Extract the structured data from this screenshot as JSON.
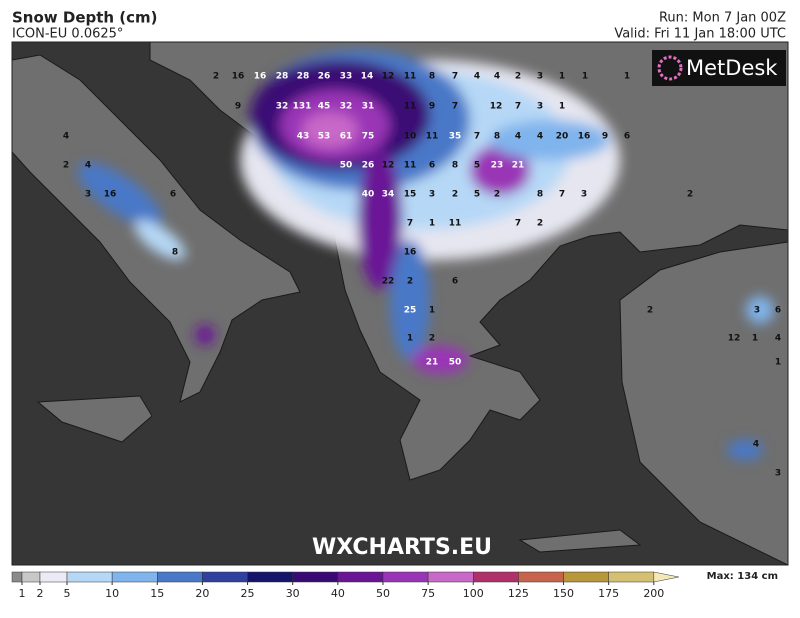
{
  "header": {
    "title": "Snow Depth (cm)",
    "subtitle": "ICON-EU 0.0625°",
    "run": "Run: Mon 7 Jan 00Z",
    "valid": "Valid: Fri 11 Jan 18:00 UTC"
  },
  "logo": "MetDesk",
  "watermark": "WXCHARTS.EU",
  "map": {
    "labels": [
      "2",
      "16",
      "16",
      "28",
      "28",
      "26",
      "33",
      "14",
      "12",
      "11",
      "8",
      "7",
      "4",
      "4",
      "2",
      "3",
      "1",
      "1",
      "1",
      "9",
      "32",
      "131",
      "45",
      "32",
      "31",
      "11",
      "9",
      "7",
      "12",
      "7",
      "3",
      "1",
      "4",
      "43",
      "53",
      "61",
      "75",
      "10",
      "11",
      "35",
      "7",
      "8",
      "4",
      "4",
      "20",
      "16",
      "9",
      "6",
      "2",
      "4",
      "50",
      "26",
      "12",
      "11",
      "6",
      "8",
      "5",
      "23",
      "21",
      "3",
      "16",
      "6",
      "40",
      "34",
      "15",
      "3",
      "2",
      "5",
      "2",
      "8",
      "7",
      "3",
      "2",
      "7",
      "1",
      "11",
      "7",
      "2",
      "8",
      "16",
      "22",
      "2",
      "6",
      "25",
      "1",
      "2",
      "3",
      "6",
      "1",
      "2",
      "12",
      "1",
      "4",
      "21",
      "50",
      "1",
      "4",
      "3"
    ]
  },
  "colorbar": {
    "ticks": [
      1,
      2,
      5,
      10,
      15,
      20,
      25,
      30,
      40,
      50,
      75,
      100,
      125,
      150,
      175,
      200
    ],
    "colors": [
      "#8a8a8a",
      "#c8c8c8",
      "#eceaf4",
      "#b6d8f6",
      "#80b4ec",
      "#4a78c8",
      "#30409e",
      "#14146a",
      "#3a0a74",
      "#6a1496",
      "#9a34b6",
      "#c868c8",
      "#b0306a",
      "#c8644e",
      "#b8963a",
      "#d4c070",
      "#f4e8b8"
    ],
    "max_label": "Max: 134 cm"
  }
}
